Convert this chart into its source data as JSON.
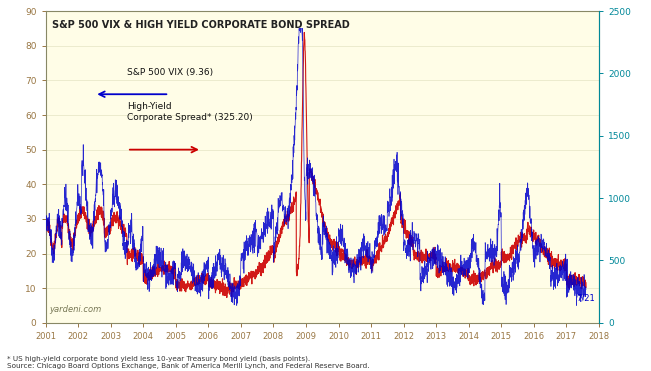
{
  "title": "S&P 500 VIX & HIGH YIELD CORPORATE BOND SPREAD",
  "bg_color": "#FFFDE7",
  "fig_bg_color": "#FFFFFF",
  "vix_color": "#0000CC",
  "spread_color": "#CC0000",
  "left_tick_color": "#997744",
  "right_tick_color": "#008899",
  "xlim": [
    2001.0,
    2018.0
  ],
  "ylim_left": [
    0,
    90
  ],
  "ylim_right": [
    0,
    2500
  ],
  "yticks_left": [
    0,
    10,
    20,
    30,
    40,
    50,
    60,
    70,
    80,
    90
  ],
  "yticks_right": [
    0,
    500,
    1000,
    1500,
    2000,
    2500
  ],
  "xticks": [
    2001,
    2002,
    2003,
    2004,
    2005,
    2006,
    2007,
    2008,
    2009,
    2010,
    2011,
    2012,
    2013,
    2014,
    2015,
    2016,
    2017,
    2018
  ],
  "annotation_vix": "S&P 500 VIX (9.36)",
  "annotation_spread": "High-Yield\nCorporate Spread* (325.20)",
  "annotation_date": "7/21",
  "watermark": "yardeni.com",
  "footnote": "* US high-yield corporate bond yield less 10-year Treasury bond yield (basis points).\nSource: Chicago Board Options Exchange, Bank of America Merill Lynch, and Federal Reserve Board."
}
